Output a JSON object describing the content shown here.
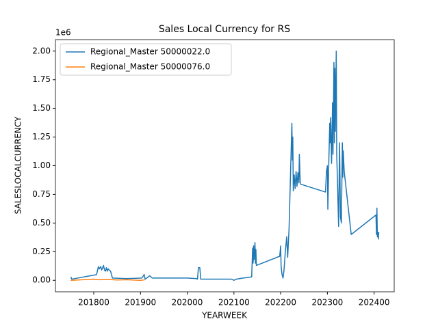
{
  "chart_data": {
    "type": "line",
    "title": "Sales Local Currency for RS",
    "x_label": "YEARWEEK",
    "y_label": "SALESLOCALCURRENCY",
    "y_offset_label": "1e6",
    "xlim": [
      201718,
      202443
    ],
    "xticks": [
      201800,
      201900,
      202000,
      202100,
      202200,
      202300,
      202400
    ],
    "ylim": [
      -0.1,
      2.1
    ],
    "yticks": [
      {
        "value": 0,
        "label": "0.00"
      },
      {
        "value": 0.25,
        "label": "0.25"
      },
      {
        "value": 0.5,
        "label": "0.50"
      },
      {
        "value": 0.75,
        "label": "0.75"
      },
      {
        "value": 1,
        "label": "1.00"
      },
      {
        "value": 1.25,
        "label": "1.25"
      },
      {
        "value": 1.5,
        "label": "1.50"
      },
      {
        "value": 1.75,
        "label": "1.75"
      },
      {
        "value": 2,
        "label": "2.00"
      }
    ],
    "grid": false,
    "legend": "upper left",
    "series": [
      {
        "name": "Regional_Master 50000022.0",
        "color": "#1f77b4",
        "x": [
          201751,
          201753,
          201806,
          201810,
          201812,
          201815,
          201817,
          201819,
          201821,
          201823,
          201825,
          201827,
          201829,
          201831,
          201833,
          201836,
          201840,
          201870,
          201903,
          201908,
          201910,
          201920,
          201925,
          201935,
          201950,
          202000,
          202020,
          202022,
          202024,
          202027,
          202029,
          202035,
          202060,
          202095,
          202100,
          202105,
          202120,
          202138,
          202140,
          202141,
          202142,
          202143,
          202145,
          202146,
          202147,
          202148,
          202198,
          202200,
          202201,
          202203,
          202205,
          202207,
          202210,
          202213,
          202215,
          202218,
          202224,
          202225,
          202226,
          202227,
          202229,
          202231,
          202233,
          202235,
          202237,
          202239,
          202240,
          202242,
          202296,
          202298,
          202300,
          202301,
          202303,
          202305,
          202306,
          202307,
          202309,
          202311,
          202312,
          202314,
          202315,
          202316,
          202317,
          202319,
          202320,
          202322,
          202324,
          202326,
          202328,
          202330,
          202332,
          202333,
          202334,
          202336,
          202351,
          202404,
          202405,
          202406,
          202407,
          202408,
          202409,
          202410
        ],
        "values": [
          0.03,
          0.01,
          0.05,
          0.12,
          0.1,
          0.12,
          0.09,
          0.11,
          0.13,
          0.09,
          0.08,
          0.11,
          0.08,
          0.1,
          0.09,
          0.08,
          0.02,
          0.015,
          0.02,
          0.05,
          0.01,
          0.04,
          0.02,
          0.02,
          0.02,
          0.02,
          0.015,
          0.01,
          0.11,
          0.11,
          0.01,
          0.01,
          0.01,
          0.01,
          0.0,
          0.01,
          0.02,
          0.03,
          0.28,
          0.15,
          0.3,
          0.18,
          0.33,
          0.15,
          0.27,
          0.13,
          0.21,
          0.3,
          0.12,
          0.05,
          0.02,
          0.08,
          0.25,
          0.38,
          0.2,
          0.45,
          1.37,
          1.05,
          1.25,
          0.78,
          0.92,
          0.8,
          0.95,
          0.82,
          0.94,
          0.85,
          1.1,
          0.84,
          0.77,
          0.95,
          1.0,
          0.62,
          1.02,
          1.37,
          1.2,
          1.42,
          1.02,
          1.55,
          1.1,
          1.9,
          1.2,
          1.85,
          1.3,
          2.0,
          1.1,
          0.8,
          0.47,
          1.2,
          0.55,
          0.5,
          1.2,
          0.9,
          1.13,
          0.95,
          0.4,
          0.57,
          0.4,
          0.63,
          0.38,
          0.42,
          0.36,
          0.42
        ]
      },
      {
        "name": "Regional_Master 50000076.0",
        "color": "#ff7f0e",
        "x": [
          201751,
          201801,
          201810,
          201830,
          201850,
          201870,
          201900,
          201909
        ],
        "values": [
          0.0,
          0.01,
          0.005,
          0.008,
          0.003,
          0.005,
          0.0,
          0.004
        ]
      }
    ]
  }
}
